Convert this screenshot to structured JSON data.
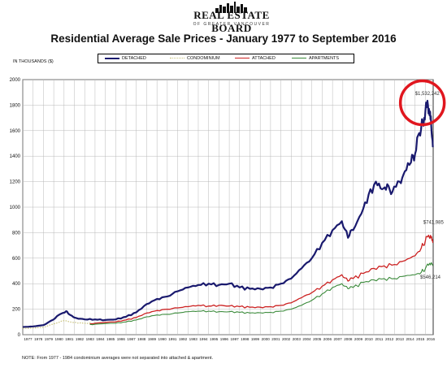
{
  "logo": {
    "name": "REAL ESTATE BOARD",
    "sub": "OF GREATER VANCOUVER"
  },
  "title": "Residential Average Sale Prices  -  January 1977 to September 2016",
  "units": "IN THOUSANDS ($)",
  "note": "NOTE:  From 1977 - 1984 condominium averages were not separated into attached & apartment.",
  "colors": {
    "detached": "#1a1a6e",
    "condominium": "#c8c27a",
    "attached": "#cc2222",
    "apartments": "#3a8a3a",
    "highlight": "#e0161e",
    "grid": "#b8b8b8"
  },
  "chart_data": {
    "type": "line",
    "ylim": [
      0,
      2000
    ],
    "yticks": [
      0,
      200,
      400,
      600,
      800,
      1000,
      1200,
      1400,
      1600,
      1800,
      2000
    ],
    "xlim": [
      1977,
      2016.75
    ],
    "xticks": [
      "1977",
      "1978",
      "1979",
      "1980",
      "1981",
      "1982",
      "1983",
      "1984",
      "1985",
      "1986",
      "1987",
      "1988",
      "1989",
      "1990",
      "1991",
      "1992",
      "1993",
      "1994",
      "1995",
      "1996",
      "1997",
      "1998",
      "1999",
      "2000",
      "2001",
      "2002",
      "2003",
      "2004",
      "2005",
      "2006",
      "2007",
      "2008",
      "2009",
      "2010",
      "2011",
      "2012",
      "2013",
      "2014",
      "2015",
      "2016"
    ],
    "grid": true,
    "legend_position": "top",
    "series": [
      {
        "name": "DETACHED",
        "points": [
          [
            1977,
            60
          ],
          [
            1978,
            65
          ],
          [
            1979,
            75
          ],
          [
            1980,
            120
          ],
          [
            1980.6,
            160
          ],
          [
            1981.2,
            185
          ],
          [
            1981.6,
            155
          ],
          [
            1982.2,
            130
          ],
          [
            1983,
            120
          ],
          [
            1984,
            120
          ],
          [
            1985,
            115
          ],
          [
            1986,
            120
          ],
          [
            1987,
            140
          ],
          [
            1988,
            175
          ],
          [
            1989,
            240
          ],
          [
            1990,
            280
          ],
          [
            1991,
            300
          ],
          [
            1992,
            340
          ],
          [
            1993,
            370
          ],
          [
            1994,
            390
          ],
          [
            1995,
            400
          ],
          [
            1996,
            390
          ],
          [
            1997,
            400
          ],
          [
            1998,
            370
          ],
          [
            1999,
            360
          ],
          [
            2000,
            360
          ],
          [
            2001,
            370
          ],
          [
            2002,
            400
          ],
          [
            2003,
            440
          ],
          [
            2004,
            520
          ],
          [
            2005,
            600
          ],
          [
            2006,
            720
          ],
          [
            2007,
            820
          ],
          [
            2007.9,
            890
          ],
          [
            2008.5,
            760
          ],
          [
            2009,
            820
          ],
          [
            2009.8,
            950
          ],
          [
            2010.5,
            1100
          ],
          [
            2011.2,
            1200
          ],
          [
            2011.8,
            1140
          ],
          [
            2012.3,
            1180
          ],
          [
            2012.8,
            1120
          ],
          [
            2013.5,
            1200
          ],
          [
            2014,
            1280
          ],
          [
            2014.6,
            1350
          ],
          [
            2015,
            1420
          ],
          [
            2015.4,
            1580
          ],
          [
            2015.75,
            1650
          ],
          [
            2016.0,
            1760
          ],
          [
            2016.25,
            1800
          ],
          [
            2016.45,
            1750
          ],
          [
            2016.6,
            1580
          ],
          [
            2016.72,
            1470
          ]
        ]
      },
      {
        "name": "CONDOMINIUM",
        "points": [
          [
            1977,
            50
          ],
          [
            1978,
            52
          ],
          [
            1979,
            58
          ],
          [
            1980,
            85
          ],
          [
            1981,
            110
          ],
          [
            1981.6,
            100
          ],
          [
            1982.3,
            92
          ],
          [
            1983,
            90
          ],
          [
            1984,
            88
          ]
        ]
      },
      {
        "name": "ATTACHED",
        "points": [
          [
            1983.5,
            85
          ],
          [
            1984,
            90
          ],
          [
            1986,
            100
          ],
          [
            1987,
            115
          ],
          [
            1988,
            135
          ],
          [
            1989,
            170
          ],
          [
            1990,
            190
          ],
          [
            1991,
            200
          ],
          [
            1992,
            210
          ],
          [
            1993,
            220
          ],
          [
            1994,
            230
          ],
          [
            1995,
            225
          ],
          [
            1996,
            230
          ],
          [
            1997,
            225
          ],
          [
            1998,
            220
          ],
          [
            1999,
            215
          ],
          [
            2000,
            215
          ],
          [
            2001,
            220
          ],
          [
            2002,
            230
          ],
          [
            2003,
            250
          ],
          [
            2004,
            290
          ],
          [
            2005,
            330
          ],
          [
            2006,
            380
          ],
          [
            2007,
            430
          ],
          [
            2007.9,
            470
          ],
          [
            2008.5,
            420
          ],
          [
            2009,
            440
          ],
          [
            2010,
            480
          ],
          [
            2011,
            520
          ],
          [
            2012,
            540
          ],
          [
            2013,
            550
          ],
          [
            2014,
            580
          ],
          [
            2015,
            620
          ],
          [
            2015.6,
            680
          ],
          [
            2016.0,
            740
          ],
          [
            2016.3,
            780
          ],
          [
            2016.55,
            760
          ],
          [
            2016.72,
            720
          ]
        ]
      },
      {
        "name": "APARTMENTS",
        "points": [
          [
            1983.5,
            80
          ],
          [
            1984,
            82
          ],
          [
            1986,
            90
          ],
          [
            1987,
            100
          ],
          [
            1988,
            115
          ],
          [
            1989,
            140
          ],
          [
            1990,
            155
          ],
          [
            1991,
            160
          ],
          [
            1992,
            170
          ],
          [
            1993,
            180
          ],
          [
            1994,
            185
          ],
          [
            1995,
            185
          ],
          [
            1996,
            180
          ],
          [
            1997,
            180
          ],
          [
            1998,
            175
          ],
          [
            1999,
            170
          ],
          [
            2000,
            172
          ],
          [
            2001,
            175
          ],
          [
            2002,
            185
          ],
          [
            2003,
            200
          ],
          [
            2004,
            230
          ],
          [
            2005,
            270
          ],
          [
            2006,
            320
          ],
          [
            2007,
            370
          ],
          [
            2007.9,
            400
          ],
          [
            2008.5,
            360
          ],
          [
            2009,
            370
          ],
          [
            2010,
            410
          ],
          [
            2011,
            430
          ],
          [
            2012,
            440
          ],
          [
            2013,
            440
          ],
          [
            2014,
            460
          ],
          [
            2015,
            470
          ],
          [
            2015.6,
            490
          ],
          [
            2016.0,
            520
          ],
          [
            2016.4,
            560
          ],
          [
            2016.72,
            540
          ]
        ]
      }
    ],
    "annotations": [
      {
        "label": "$1,532,242",
        "x": 2016.1,
        "y": 1880,
        "anchor": "end"
      },
      {
        "label": "$741,985",
        "x": 2016.5,
        "y": 870,
        "anchor": "end"
      },
      {
        "label": "$546,214",
        "x": 2016.2,
        "y": 440,
        "anchor": "end"
      }
    ],
    "highlight_circle": {
      "x": 2015.7,
      "y": 1780
    }
  },
  "legend": [
    {
      "label": "DETACHED",
      "color": "#1a1a6e",
      "style": "solid"
    },
    {
      "label": "CONDOMINIUM",
      "color": "#c8c27a",
      "style": "dotted"
    },
    {
      "label": "ATTACHED",
      "color": "#cc2222",
      "style": "solid"
    },
    {
      "label": "APARTMENTS",
      "color": "#3a8a3a",
      "style": "solid"
    }
  ]
}
